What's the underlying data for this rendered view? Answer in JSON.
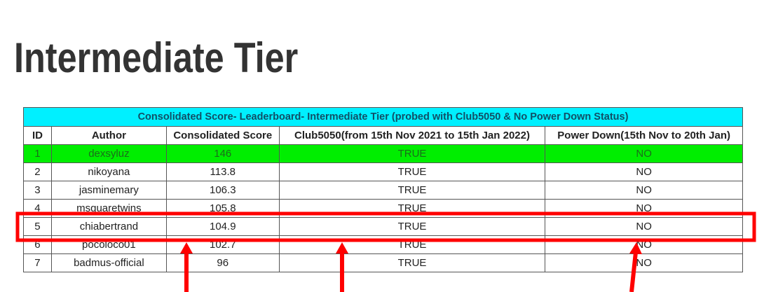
{
  "page": {
    "heading": "Intermediate Tier"
  },
  "table": {
    "title": "Consolidated Score- Leaderboard- Intermediate Tier (probed with Club5050 & No Power Down Status)",
    "columns": [
      "ID",
      "Author",
      "Consolidated Score",
      "Club5050(from 15th Nov 2021 to 15th Jan 2022)",
      "Power Down(15th Nov to 20th Jan)"
    ],
    "rows": [
      {
        "id": "1",
        "author": "dexsyluz",
        "score": "146",
        "club5050": "TRUE",
        "power_down": "NO"
      },
      {
        "id": "2",
        "author": "nikoyana",
        "score": "113.8",
        "club5050": "TRUE",
        "power_down": "NO"
      },
      {
        "id": "3",
        "author": "jasminemary",
        "score": "106.3",
        "club5050": "TRUE",
        "power_down": "NO"
      },
      {
        "id": "4",
        "author": "msquaretwins",
        "score": "105.8",
        "club5050": "TRUE",
        "power_down": "NO"
      },
      {
        "id": "5",
        "author": "chiabertrand",
        "score": "104.9",
        "club5050": "TRUE",
        "power_down": "NO"
      },
      {
        "id": "6",
        "author": "pocoloco01",
        "score": "102.7",
        "club5050": "TRUE",
        "power_down": "NO"
      },
      {
        "id": "7",
        "author": "badmus-official",
        "score": "96",
        "club5050": "TRUE",
        "power_down": "NO"
      }
    ],
    "highlight_color": "#00ee00",
    "title_color": "#00f0ff"
  },
  "annotation": {
    "color": "#ff0000",
    "highlighted_row_id": "5"
  }
}
